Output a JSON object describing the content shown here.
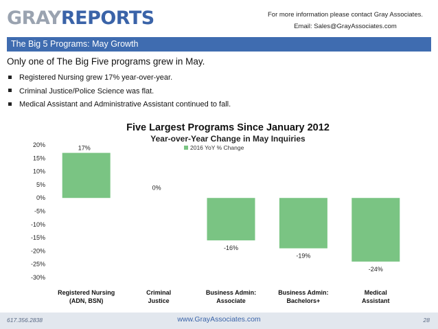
{
  "logo": {
    "part1": "GRAY",
    "part2": "REPORTS"
  },
  "contact": {
    "line1": "For more information please contact Gray Associates.",
    "line2": "Email:  Sales@GrayAssociates.com"
  },
  "banner": {
    "title": "The Big 5 Programs:  May Growth"
  },
  "headline": "Only one of The Big Five programs grew in May.",
  "bullets": [
    "Registered Nursing grew 17% year-over-year.",
    "Criminal Justice/Police Science was flat.",
    "Medical Assistant and Administrative Assistant continued to fall."
  ],
  "colors": {
    "bar": "#7ac483",
    "banner": "#3f6cb0",
    "brand_blue": "#3a63a8",
    "logo_gray": "#9aa3b0",
    "footer_bg": "#e2e7ee"
  },
  "chart_data": {
    "type": "bar",
    "title": "Five Largest Programs Since January 2012",
    "subtitle": "Year-over-Year Change in May Inquiries",
    "legend": "2016 YoY % Change",
    "legend_position": "top-center",
    "categories": [
      [
        "Registered Nursing",
        "(ADN, BSN)"
      ],
      [
        "Criminal",
        "Justice"
      ],
      [
        "Business Admin:",
        "Associate"
      ],
      [
        "Business Admin:",
        "Bachelors+"
      ],
      [
        "Medical",
        "Assistant"
      ]
    ],
    "values": [
      17,
      0,
      -16,
      -19,
      -24
    ],
    "data_labels": [
      "17%",
      "0%",
      "-16%",
      "-19%",
      "-24%"
    ],
    "yticks": [
      20,
      15,
      10,
      5,
      0,
      -5,
      -10,
      -15,
      -20,
      -25,
      -30
    ],
    "ytick_labels": [
      "20%",
      "15%",
      "10%",
      "5%",
      "0%",
      "-5%",
      "-10%",
      "-15%",
      "-20%",
      "-25%",
      "-30%"
    ],
    "ylim": [
      -30,
      20
    ],
    "grid": false
  },
  "footer": {
    "phone": "617.356.2838",
    "url": "www.GrayAssociates.com",
    "page": "28"
  }
}
